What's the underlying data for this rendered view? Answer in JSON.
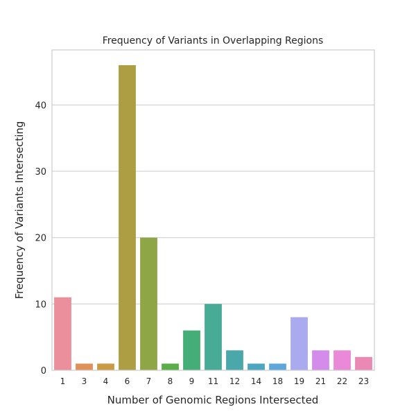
{
  "chart_data": {
    "type": "bar",
    "title": "Frequency of Variants in Overlapping Regions",
    "xlabel": "Number of Genomic Regions Intersected",
    "ylabel": "Frequency of Variants Intersecting",
    "categories": [
      "1",
      "3",
      "4",
      "6",
      "7",
      "8",
      "9",
      "11",
      "12",
      "14",
      "18",
      "19",
      "21",
      "22",
      "23"
    ],
    "values": [
      11,
      1,
      1,
      46,
      20,
      1,
      6,
      10,
      3,
      1,
      1,
      8,
      3,
      3,
      2
    ],
    "colors": [
      "#ea8f9b",
      "#e0915a",
      "#c99b44",
      "#ad9e43",
      "#8fa646",
      "#5aad48",
      "#45ad77",
      "#48ab96",
      "#4aa7aa",
      "#4ca6c0",
      "#5ea7db",
      "#a9abee",
      "#d48cea",
      "#e989d7",
      "#e989b4"
    ],
    "ylim": [
      0,
      48.3
    ],
    "yticks": [
      0,
      10,
      20,
      30,
      40
    ],
    "grid": true,
    "legend": "none"
  }
}
